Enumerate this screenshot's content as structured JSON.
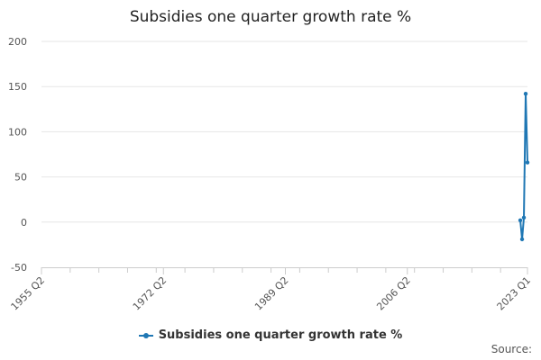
{
  "colors": {
    "series": "#1f77b4",
    "grid": "#e6e6e6",
    "axis": "#cccccc"
  },
  "source_label": "Source:",
  "chart_data": {
    "type": "line",
    "title": "Subsidies one quarter growth rate %",
    "xlabel": "",
    "ylabel": "",
    "ylim": [
      -50,
      200
    ],
    "yticks": [
      200,
      150,
      100,
      50,
      0,
      -50
    ],
    "xlim": [
      "1955 Q2",
      "2023 Q1"
    ],
    "xtick_labels": [
      "1955 Q2",
      "1972 Q2",
      "1989 Q2",
      "2006 Q2",
      "2023 Q1"
    ],
    "grid": true,
    "legend_placement": "bottom",
    "series": [
      {
        "name": "Subsidies one quarter growth rate %",
        "x": [
          "2022 Q1",
          "2022 Q2",
          "2022 Q3",
          "2022 Q4",
          "2023 Q1"
        ],
        "y": [
          2,
          -19,
          5,
          142,
          66
        ]
      }
    ]
  }
}
